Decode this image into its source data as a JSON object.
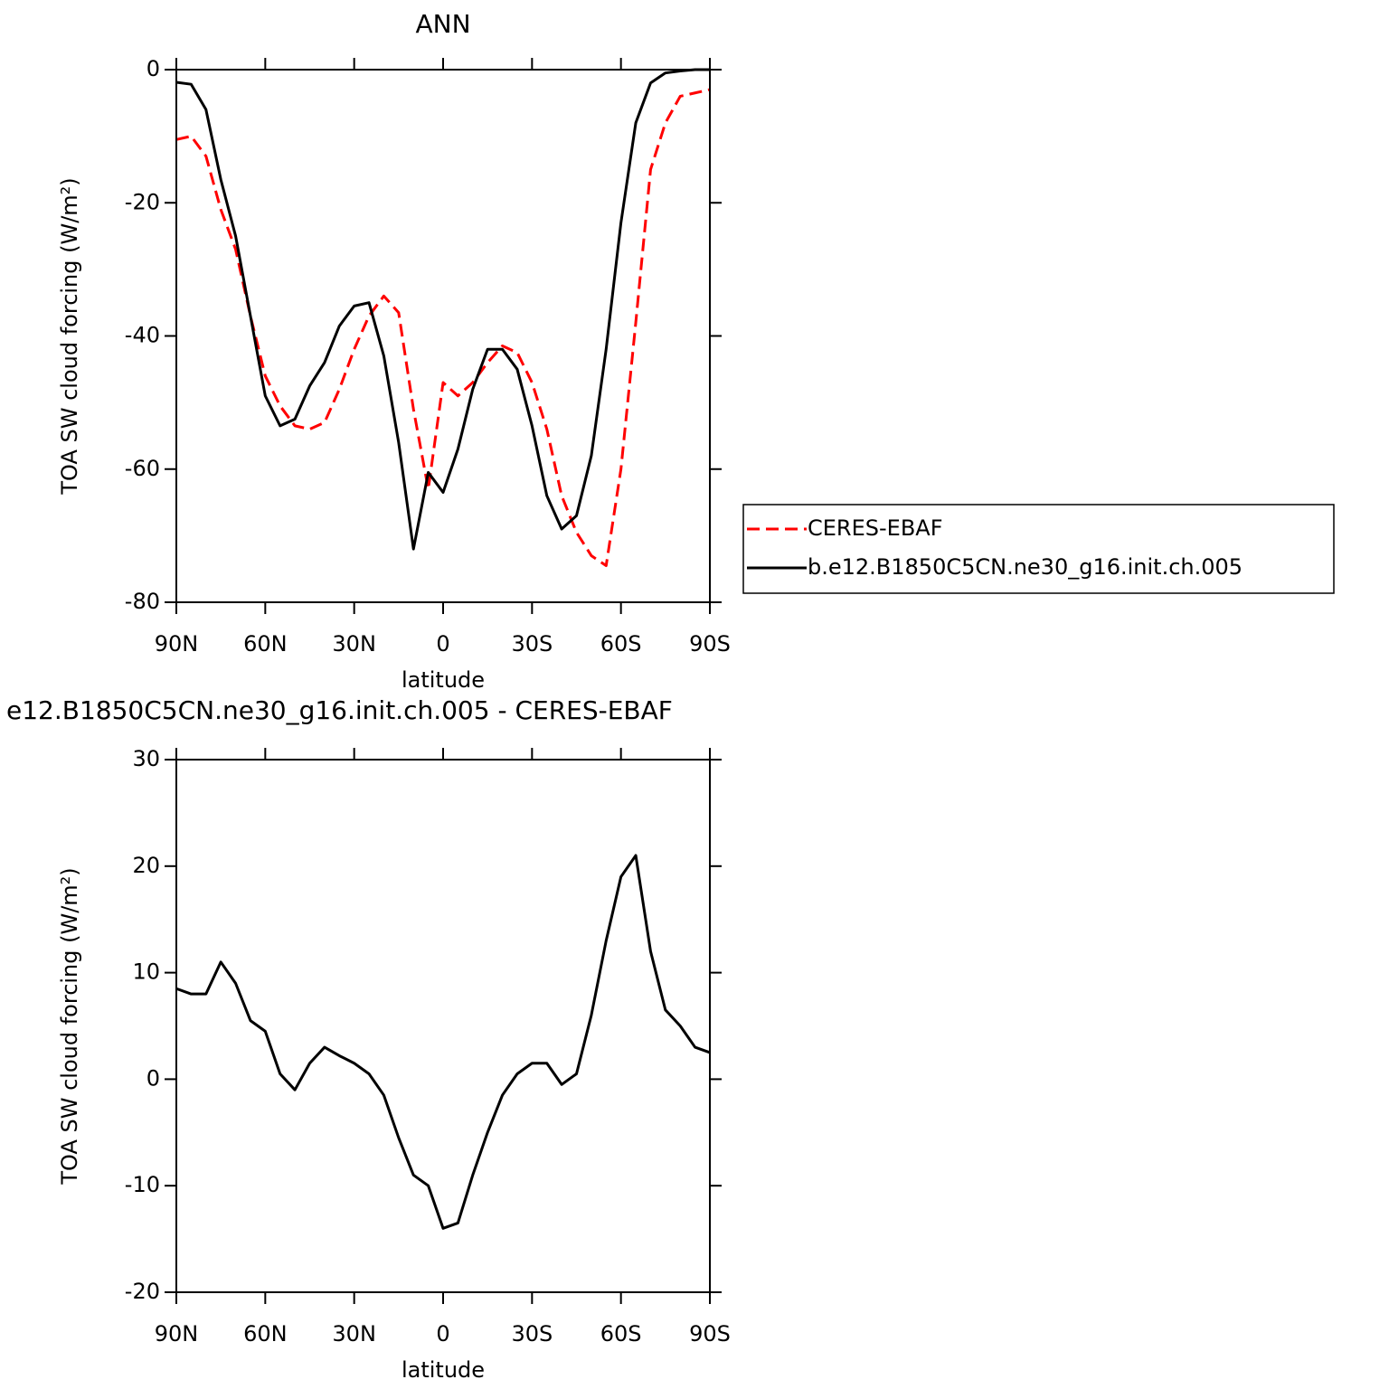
{
  "chart_data": [
    {
      "type": "line",
      "title": "ANN",
      "x_label": "latitude",
      "y_label": "TOA SW cloud forcing (W/m²)",
      "x": [
        90,
        85,
        80,
        75,
        70,
        65,
        60,
        55,
        50,
        45,
        40,
        35,
        30,
        25,
        20,
        15,
        10,
        5,
        0,
        -5,
        -10,
        -15,
        -20,
        -25,
        -30,
        -35,
        -40,
        -45,
        -50,
        -55,
        -60,
        -65,
        -70,
        -75,
        -80,
        -85,
        -90
      ],
      "xlim": [
        90,
        -90
      ],
      "xticks": [
        {
          "value": 90,
          "label": "90N"
        },
        {
          "value": 60,
          "label": "60N"
        },
        {
          "value": 30,
          "label": "30N"
        },
        0,
        {
          "value": -30,
          "label": "30S"
        },
        {
          "value": -60,
          "label": "60S"
        },
        {
          "value": -90,
          "label": "90S"
        }
      ],
      "ylim": [
        -80,
        0
      ],
      "yticks": [
        -80,
        -60,
        -40,
        -20,
        0
      ],
      "legend": "right",
      "series": [
        {
          "name": "CERES-EBAF",
          "color": "#ff0000",
          "line_style": "dashed",
          "values": [
            -10.5,
            -10,
            -13,
            -21,
            -27,
            -37,
            -46,
            -50.5,
            -53.5,
            -54,
            -53,
            -48,
            -42,
            -37,
            -34,
            -36.5,
            -51,
            -63,
            -47,
            -49,
            -47,
            -44,
            -41.5,
            -42.5,
            -47,
            -54,
            -64,
            -69.5,
            -73,
            -74.5,
            -60,
            -38,
            -15,
            -8,
            -4,
            -3.5,
            -3
          ]
        },
        {
          "name": "b.e12.B1850C5CN.ne30_g16.init.ch.005",
          "color": "#000000",
          "line_style": "solid",
          "values": [
            -1.9,
            -2.2,
            -6,
            -16.5,
            -25,
            -37,
            -49,
            -53.5,
            -52.5,
            -47.5,
            -44,
            -38.5,
            -35.5,
            -35,
            -43,
            -56,
            -72,
            -60.5,
            -63.5,
            -57,
            -48,
            -42,
            -42,
            -45,
            -53.5,
            -64,
            -69,
            -67,
            -58,
            -42,
            -23,
            -8,
            -2,
            -0.5,
            -0.2,
            0,
            0
          ]
        }
      ]
    },
    {
      "type": "line",
      "title": "e12.B1850C5CN.ne30_g16.init.ch.005 - CERES-EBAF",
      "x_label": "latitude",
      "y_label": "TOA SW cloud forcing (W/m²)",
      "x": [
        90,
        85,
        80,
        75,
        70,
        65,
        60,
        55,
        50,
        45,
        40,
        35,
        30,
        25,
        20,
        15,
        10,
        5,
        0,
        -5,
        -10,
        -15,
        -20,
        -25,
        -30,
        -35,
        -40,
        -45,
        -50,
        -55,
        -60,
        -65,
        -70,
        -75,
        -80,
        -85,
        -90
      ],
      "xlim": [
        90,
        -90
      ],
      "xticks": [
        {
          "value": 90,
          "label": "90N"
        },
        {
          "value": 60,
          "label": "60N"
        },
        {
          "value": 30,
          "label": "30N"
        },
        0,
        {
          "value": -30,
          "label": "30S"
        },
        {
          "value": -60,
          "label": "60S"
        },
        {
          "value": -90,
          "label": "90S"
        }
      ],
      "ylim": [
        -20,
        30
      ],
      "yticks": [
        -20,
        -10,
        0,
        10,
        20,
        30
      ],
      "series": [
        {
          "color": "#000000",
          "line_style": "solid",
          "values": [
            8.5,
            8,
            8,
            11,
            9,
            5.5,
            4.5,
            0.5,
            -1,
            1.5,
            3,
            2.2,
            1.5,
            0.5,
            -1.5,
            -5.5,
            -9,
            -10,
            -14,
            -13.5,
            -9,
            -5,
            -1.5,
            0.5,
            1.5,
            1.5,
            -0.5,
            0.5,
            6,
            13,
            19,
            21,
            12,
            6.5,
            5,
            3,
            2.5
          ]
        }
      ]
    }
  ]
}
